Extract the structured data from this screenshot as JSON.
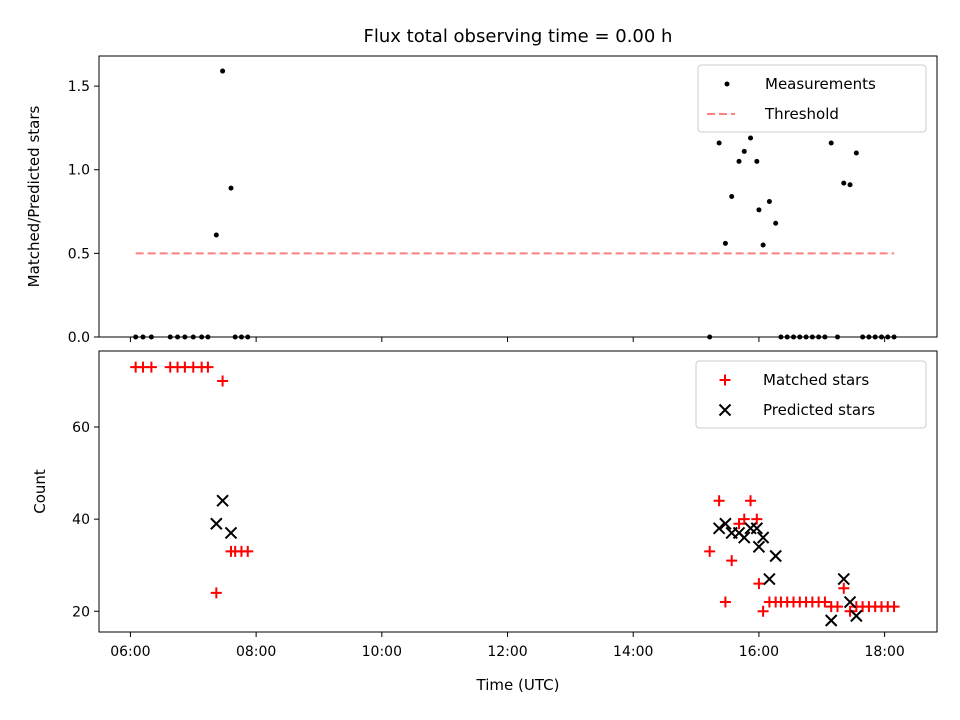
{
  "chart_data": [
    {
      "type": "scatter",
      "title": "Flux total observing time = 0.00 h",
      "xlabel": "",
      "ylabel": "Matched/Predicted stars",
      "xlim": [
        "05:30",
        "18:50"
      ],
      "ylim": [
        0,
        1.68
      ],
      "yticks": [
        0.0,
        0.5,
        1.0,
        1.5
      ],
      "xticks": [
        "06:00",
        "08:00",
        "10:00",
        "12:00",
        "14:00",
        "16:00",
        "18:00"
      ],
      "show_xtick_labels": false,
      "grid": false,
      "legend": {
        "placement": "top-right",
        "entries": [
          "Measurements",
          "Threshold"
        ]
      },
      "series": [
        {
          "name": "Measurements",
          "kind": "points",
          "color": "#000000",
          "points": [
            [
              "06:05",
              0
            ],
            [
              "06:12",
              0
            ],
            [
              "06:20",
              0
            ],
            [
              "06:38",
              0
            ],
            [
              "06:45",
              0
            ],
            [
              "06:52",
              0
            ],
            [
              "07:00",
              0
            ],
            [
              "07:08",
              0
            ],
            [
              "07:14",
              0
            ],
            [
              "07:22",
              0.61
            ],
            [
              "07:28",
              1.59
            ],
            [
              "07:36",
              0.89
            ],
            [
              "07:40",
              0
            ],
            [
              "07:46",
              0
            ],
            [
              "07:52",
              0
            ],
            [
              "15:13",
              0
            ],
            [
              "15:22",
              1.16
            ],
            [
              "15:28",
              0.56
            ],
            [
              "15:34",
              0.84
            ],
            [
              "15:41",
              1.05
            ],
            [
              "15:46",
              1.11
            ],
            [
              "15:52",
              1.19
            ],
            [
              "15:58",
              1.05
            ],
            [
              "16:00",
              0.76
            ],
            [
              "16:04",
              0.55
            ],
            [
              "16:10",
              0.81
            ],
            [
              "16:16",
              0.68
            ],
            [
              "16:21",
              0
            ],
            [
              "16:27",
              0
            ],
            [
              "16:33",
              0
            ],
            [
              "16:39",
              0
            ],
            [
              "16:45",
              0
            ],
            [
              "16:51",
              0
            ],
            [
              "16:57",
              0
            ],
            [
              "17:03",
              0
            ],
            [
              "17:09",
              1.16
            ],
            [
              "17:15",
              0
            ],
            [
              "17:21",
              0.92
            ],
            [
              "17:27",
              0.91
            ],
            [
              "17:33",
              1.1
            ],
            [
              "17:39",
              0
            ],
            [
              "17:45",
              0
            ],
            [
              "17:51",
              0
            ],
            [
              "17:57",
              0
            ],
            [
              "18:03",
              0
            ],
            [
              "18:09",
              0
            ]
          ]
        },
        {
          "name": "Threshold",
          "kind": "dashed-line",
          "color": "#ff7f7f",
          "points": [
            [
              "06:05",
              0.5
            ],
            [
              "18:09",
              0.5
            ]
          ]
        }
      ]
    },
    {
      "type": "scatter",
      "title": "",
      "xlabel": "Time (UTC)",
      "ylabel": "Count",
      "xlim": [
        "05:30",
        "18:50"
      ],
      "ylim": [
        15.5,
        76.5
      ],
      "yticks": [
        20,
        40,
        60
      ],
      "xticks": [
        "06:00",
        "08:00",
        "10:00",
        "12:00",
        "14:00",
        "16:00",
        "18:00"
      ],
      "show_xtick_labels": true,
      "grid": false,
      "legend": {
        "placement": "top-right",
        "entries": [
          "Matched stars",
          "Predicted stars"
        ]
      },
      "series": [
        {
          "name": "Matched stars",
          "kind": "plus",
          "color": "#ff0000",
          "points": [
            [
              "06:05",
              73
            ],
            [
              "06:12",
              73
            ],
            [
              "06:20",
              73
            ],
            [
              "06:38",
              73
            ],
            [
              "06:45",
              73
            ],
            [
              "06:52",
              73
            ],
            [
              "07:00",
              73
            ],
            [
              "07:08",
              73
            ],
            [
              "07:14",
              73
            ],
            [
              "07:22",
              24
            ],
            [
              "07:28",
              70
            ],
            [
              "07:36",
              33
            ],
            [
              "07:40",
              33
            ],
            [
              "07:46",
              33
            ],
            [
              "07:52",
              33
            ],
            [
              "15:13",
              33
            ],
            [
              "15:22",
              44
            ],
            [
              "15:28",
              22
            ],
            [
              "15:34",
              31
            ],
            [
              "15:41",
              39
            ],
            [
              "15:46",
              40
            ],
            [
              "15:52",
              44
            ],
            [
              "15:58",
              40
            ],
            [
              "16:00",
              26
            ],
            [
              "16:04",
              20
            ],
            [
              "16:10",
              22
            ],
            [
              "16:16",
              22
            ],
            [
              "16:21",
              22
            ],
            [
              "16:27",
              22
            ],
            [
              "16:33",
              22
            ],
            [
              "16:39",
              22
            ],
            [
              "16:45",
              22
            ],
            [
              "16:51",
              22
            ],
            [
              "16:57",
              22
            ],
            [
              "17:03",
              22
            ],
            [
              "17:09",
              21
            ],
            [
              "17:15",
              21
            ],
            [
              "17:21",
              25
            ],
            [
              "17:27",
              20
            ],
            [
              "17:33",
              21
            ],
            [
              "17:39",
              21
            ],
            [
              "17:45",
              21
            ],
            [
              "17:51",
              21
            ],
            [
              "17:57",
              21
            ],
            [
              "18:03",
              21
            ],
            [
              "18:09",
              21
            ]
          ]
        },
        {
          "name": "Predicted stars",
          "kind": "x",
          "color": "#000000",
          "points": [
            [
              "07:22",
              39
            ],
            [
              "07:28",
              44
            ],
            [
              "07:36",
              37
            ],
            [
              "15:22",
              38
            ],
            [
              "15:28",
              39
            ],
            [
              "15:34",
              37
            ],
            [
              "15:41",
              37
            ],
            [
              "15:46",
              36
            ],
            [
              "15:52",
              38
            ],
            [
              "15:58",
              38
            ],
            [
              "16:00",
              34
            ],
            [
              "16:04",
              36
            ],
            [
              "16:10",
              27
            ],
            [
              "16:16",
              32
            ],
            [
              "17:09",
              18
            ],
            [
              "17:21",
              27
            ],
            [
              "17:27",
              22
            ],
            [
              "17:33",
              19
            ]
          ]
        }
      ]
    }
  ]
}
